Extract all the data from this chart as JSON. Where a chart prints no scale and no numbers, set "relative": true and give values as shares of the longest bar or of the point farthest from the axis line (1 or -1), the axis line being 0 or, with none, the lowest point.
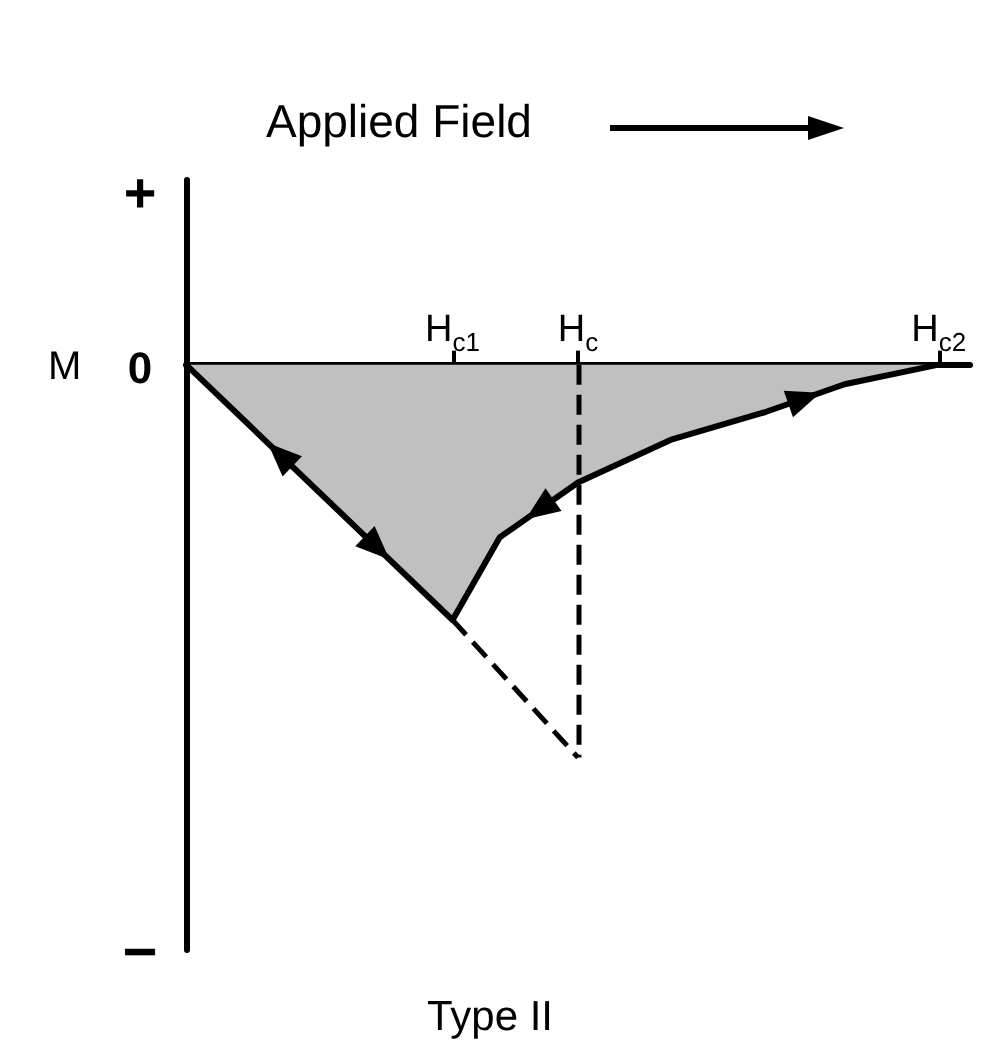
{
  "chart_data": {
    "type": "area",
    "title": "Applied Field",
    "ylabel": "M",
    "relative": true,
    "annotations": [
      "Type II",
      "+",
      "0",
      "−"
    ],
    "categories": [
      null,
      null,
      null,
      null,
      null,
      null,
      null,
      null,
      null,
      null,
      null,
      null,
      null,
      null,
      null,
      null,
      null,
      "H$_{c1}$",
      null,
      null,
      null,
      null,
      null,
      null,
      null,
      "H$_{c}$",
      null,
      null,
      null,
      null,
      null,
      null,
      null,
      null,
      null,
      null,
      null,
      null,
      null,
      null,
      null,
      null,
      null,
      null,
      null,
      null,
      null,
      null,
      "H$_{c2}$",
      null,
      null
    ],
    "series": [
      {
        "color": "#c0c0c0",
        "values": [
          0,
          null,
          null,
          null,
          null,
          null,
          null,
          null,
          null,
          null,
          null,
          null,
          null,
          null,
          null,
          null,
          null,
          -0.65,
          -0.58,
          null,
          -0.44,
          null,
          null,
          null,
          null,
          -0.3,
          null,
          null,
          null,
          null,
          null,
          -0.19,
          null,
          null,
          null,
          null,
          null,
          -0.12,
          null,
          null,
          null,
          null,
          -0.05,
          null,
          null,
          null,
          null,
          null,
          0,
          null,
          null
        ]
      },
      {
        "type": "line",
        "color": "#000000",
        "line_style": "dashed",
        "values": [
          null,
          null,
          null,
          null,
          null,
          null,
          null,
          null,
          null,
          null,
          null,
          null,
          null,
          null,
          null,
          null,
          null,
          -0.65,
          null,
          null,
          null,
          null,
          null,
          null,
          null,
          -1,
          null,
          null,
          null,
          null,
          null,
          null,
          null,
          null,
          null,
          null,
          null,
          null,
          null,
          null,
          null,
          null,
          null,
          null,
          null,
          null,
          null,
          null,
          null,
          null,
          null
        ]
      }
    ],
    "ref_lines": [
      {
        "axis": "x",
        "value": "H$_{c}$",
        "color": "#000000",
        "line_style": "dashed"
      }
    ],
    "grid": false,
    "marker": "none"
  }
}
